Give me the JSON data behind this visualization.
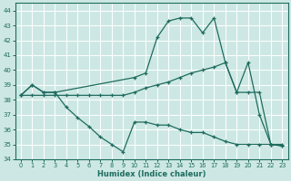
{
  "xlabel": "Humidex (Indice chaleur)",
  "xlim": [
    -0.5,
    23.5
  ],
  "ylim": [
    34,
    44.5
  ],
  "yticks": [
    34,
    35,
    36,
    37,
    38,
    39,
    40,
    41,
    42,
    43,
    44
  ],
  "xticks": [
    0,
    1,
    2,
    3,
    4,
    5,
    6,
    7,
    8,
    9,
    10,
    11,
    12,
    13,
    14,
    15,
    16,
    17,
    18,
    19,
    20,
    21,
    22,
    23
  ],
  "background_color": "#cde8e4",
  "line_color": "#1e6b5e",
  "grid_color": "#ffffff",
  "line1_x": [
    0,
    1,
    2,
    3,
    4,
    5,
    6,
    7,
    8,
    9,
    10,
    11,
    12,
    13,
    14,
    15,
    16,
    17,
    18,
    19,
    20,
    21,
    22,
    23
  ],
  "line1_y": [
    38.3,
    39.0,
    38.5,
    38.5,
    37.5,
    36.8,
    36.2,
    35.5,
    35.0,
    34.5,
    36.5,
    36.5,
    36.3,
    36.3,
    36.0,
    35.8,
    35.8,
    35.5,
    35.2,
    35.0,
    35.0,
    35.0,
    35.0,
    34.9
  ],
  "line2_x": [
    0,
    1,
    2,
    3,
    10,
    11,
    12,
    13,
    14,
    15,
    16,
    17,
    18,
    19,
    20,
    21,
    22,
    23
  ],
  "line2_y": [
    38.3,
    39.0,
    38.5,
    38.5,
    39.5,
    39.8,
    42.2,
    43.3,
    43.5,
    43.5,
    42.5,
    43.5,
    40.5,
    38.5,
    40.5,
    37.0,
    35.0,
    35.0
  ],
  "line3_x": [
    0,
    1,
    2,
    3,
    4,
    5,
    6,
    7,
    8,
    9,
    10,
    11,
    12,
    13,
    14,
    15,
    16,
    17,
    18,
    19,
    20,
    21,
    22,
    23
  ],
  "line3_y": [
    38.3,
    38.3,
    38.3,
    38.3,
    38.3,
    38.3,
    38.3,
    38.3,
    38.3,
    38.3,
    38.5,
    38.8,
    39.0,
    39.2,
    39.5,
    39.8,
    40.0,
    40.2,
    40.5,
    38.5,
    38.5,
    38.5,
    35.0,
    34.9
  ]
}
